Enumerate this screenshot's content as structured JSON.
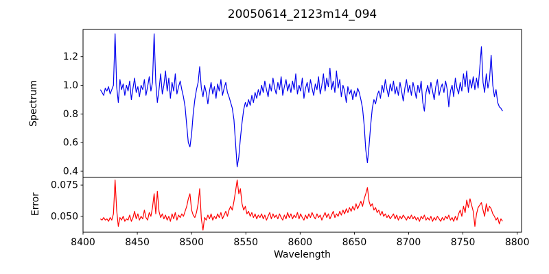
{
  "figure": {
    "background": "#ffffff"
  },
  "chart_data": [
    {
      "type": "line",
      "title": "20050614_2123m14_094",
      "series_name": "spectrum",
      "ylabel": "Spectrum",
      "color": "#0000ee",
      "xlim": [
        8400,
        8804
      ],
      "ylim": [
        0.357,
        1.39
      ],
      "yticks": [
        0.4,
        0.6,
        0.8,
        1.0,
        1.2
      ],
      "ytick_labels": [
        "0.4",
        "0.6",
        "0.8",
        "1.0",
        "1.2"
      ],
      "grid": false,
      "legend": null,
      "x_start": 8416,
      "x_step": 1.5,
      "values": [
        0.97,
        0.95,
        0.93,
        0.98,
        0.96,
        0.99,
        0.94,
        0.97,
        1.0,
        1.36,
        0.99,
        0.88,
        1.04,
        0.97,
        1.01,
        0.93,
        1.0,
        0.96,
        1.03,
        0.9,
        0.98,
        1.05,
        0.95,
        0.99,
        0.92,
        1.0,
        0.97,
        1.04,
        0.93,
        0.99,
        1.06,
        0.96,
        1.02,
        1.36,
        1.02,
        0.88,
        0.97,
        1.08,
        0.94,
        1.0,
        1.1,
        0.96,
        1.05,
        0.91,
        1.02,
        0.96,
        1.08,
        0.94,
        0.99,
        1.03,
        0.97,
        0.92,
        0.85,
        0.72,
        0.6,
        0.57,
        0.66,
        0.8,
        0.9,
        0.97,
        1.02,
        1.13,
        0.98,
        0.92,
        1.0,
        0.95,
        0.87,
        0.96,
        1.02,
        0.94,
        0.99,
        0.91,
        1.01,
        0.96,
        1.04,
        0.93,
        0.98,
        1.02,
        0.95,
        0.92,
        0.88,
        0.84,
        0.76,
        0.6,
        0.43,
        0.5,
        0.63,
        0.74,
        0.83,
        0.88,
        0.85,
        0.9,
        0.86,
        0.93,
        0.88,
        0.95,
        0.91,
        0.97,
        0.93,
        1.0,
        0.95,
        1.03,
        0.97,
        0.92,
        1.01,
        0.96,
        1.05,
        0.98,
        0.94,
        1.02,
        0.97,
        1.06,
        0.93,
        0.99,
        1.04,
        0.96,
        1.01,
        0.95,
        1.03,
        0.97,
        1.08,
        0.94,
        1.0,
        0.96,
        1.05,
        0.91,
        0.98,
        1.02,
        0.95,
        1.04,
        0.98,
        0.93,
        1.01,
        0.97,
        1.06,
        0.94,
        1.0,
        1.08,
        0.96,
        1.05,
        0.99,
        1.12,
        0.97,
        1.03,
        0.95,
        1.1,
        0.98,
        1.04,
        0.92,
        1.0,
        0.96,
        0.88,
        0.99,
        0.94,
        0.97,
        0.9,
        0.96,
        0.92,
        0.98,
        0.95,
        0.9,
        0.84,
        0.72,
        0.55,
        0.46,
        0.58,
        0.72,
        0.84,
        0.9,
        0.87,
        0.93,
        0.96,
        0.91,
        1.0,
        0.95,
        1.04,
        0.97,
        0.92,
        1.01,
        0.96,
        1.03,
        0.94,
        0.99,
        0.93,
        1.02,
        0.96,
        0.89,
        0.98,
        1.04,
        0.95,
        1.0,
        0.93,
        1.02,
        0.97,
        0.91,
        1.0,
        0.95,
        1.03,
        0.88,
        0.82,
        0.95,
        1.0,
        0.94,
        1.02,
        0.96,
        0.9,
        0.99,
        1.04,
        0.93,
        0.98,
        1.01,
        0.95,
        1.03,
        0.97,
        0.85,
        0.96,
        1.0,
        0.92,
        1.05,
        0.98,
        0.94,
        1.02,
        0.96,
        1.08,
        0.99,
        1.1,
        0.95,
        1.04,
        0.98,
        1.06,
        0.97,
        1.05,
        0.98,
        1.12,
        1.27,
        1.02,
        0.95,
        1.08,
        0.98,
        1.04,
        1.21,
        1.0,
        0.92,
        0.97,
        0.88,
        0.85,
        0.84,
        0.82
      ]
    },
    {
      "type": "line",
      "series_name": "error",
      "ylabel": "Error",
      "xlabel": "Wavelength",
      "color": "#ff0000",
      "xlim": [
        8400,
        8804
      ],
      "ylim": [
        0.0373,
        0.0811
      ],
      "yticks": [
        0.05,
        0.075
      ],
      "ytick_labels": [
        "0.050",
        "0.075"
      ],
      "xticks": [
        8400,
        8450,
        8500,
        8550,
        8600,
        8650,
        8700,
        8750,
        8800
      ],
      "xtick_labels": [
        "8400",
        "8450",
        "8500",
        "8550",
        "8600",
        "8650",
        "8700",
        "8750",
        "8800"
      ],
      "grid": false,
      "legend": null,
      "x_start": 8416,
      "x_step": 1.5,
      "values": [
        0.048,
        0.047,
        0.049,
        0.047,
        0.048,
        0.046,
        0.049,
        0.047,
        0.052,
        0.079,
        0.055,
        0.042,
        0.049,
        0.047,
        0.05,
        0.046,
        0.048,
        0.047,
        0.051,
        0.046,
        0.049,
        0.054,
        0.048,
        0.052,
        0.047,
        0.05,
        0.048,
        0.055,
        0.049,
        0.047,
        0.053,
        0.05,
        0.057,
        0.068,
        0.052,
        0.07,
        0.054,
        0.049,
        0.052,
        0.048,
        0.051,
        0.047,
        0.05,
        0.046,
        0.052,
        0.048,
        0.053,
        0.047,
        0.051,
        0.049,
        0.052,
        0.05,
        0.054,
        0.058,
        0.064,
        0.068,
        0.055,
        0.051,
        0.049,
        0.053,
        0.06,
        0.072,
        0.048,
        0.039,
        0.049,
        0.047,
        0.051,
        0.048,
        0.052,
        0.047,
        0.05,
        0.048,
        0.052,
        0.049,
        0.053,
        0.048,
        0.051,
        0.054,
        0.05,
        0.055,
        0.058,
        0.055,
        0.062,
        0.07,
        0.079,
        0.068,
        0.072,
        0.06,
        0.055,
        0.058,
        0.052,
        0.054,
        0.05,
        0.053,
        0.049,
        0.052,
        0.048,
        0.051,
        0.049,
        0.052,
        0.048,
        0.051,
        0.047,
        0.05,
        0.053,
        0.048,
        0.052,
        0.049,
        0.051,
        0.048,
        0.052,
        0.049,
        0.047,
        0.051,
        0.048,
        0.053,
        0.049,
        0.052,
        0.048,
        0.051,
        0.049,
        0.053,
        0.048,
        0.052,
        0.049,
        0.047,
        0.051,
        0.048,
        0.052,
        0.049,
        0.053,
        0.05,
        0.048,
        0.052,
        0.049,
        0.051,
        0.047,
        0.05,
        0.053,
        0.049,
        0.052,
        0.048,
        0.051,
        0.054,
        0.049,
        0.052,
        0.05,
        0.054,
        0.051,
        0.055,
        0.052,
        0.056,
        0.053,
        0.057,
        0.054,
        0.058,
        0.055,
        0.06,
        0.056,
        0.059,
        0.062,
        0.058,
        0.064,
        0.068,
        0.073,
        0.062,
        0.058,
        0.06,
        0.055,
        0.057,
        0.053,
        0.055,
        0.051,
        0.054,
        0.05,
        0.052,
        0.049,
        0.051,
        0.048,
        0.05,
        0.052,
        0.048,
        0.051,
        0.047,
        0.05,
        0.048,
        0.051,
        0.049,
        0.047,
        0.05,
        0.048,
        0.051,
        0.048,
        0.05,
        0.047,
        0.049,
        0.046,
        0.05,
        0.048,
        0.051,
        0.047,
        0.049,
        0.047,
        0.05,
        0.046,
        0.049,
        0.047,
        0.05,
        0.048,
        0.046,
        0.049,
        0.047,
        0.05,
        0.048,
        0.051,
        0.047,
        0.049,
        0.046,
        0.05,
        0.047,
        0.052,
        0.055,
        0.05,
        0.058,
        0.053,
        0.063,
        0.057,
        0.064,
        0.059,
        0.054,
        0.042,
        0.052,
        0.057,
        0.059,
        0.061,
        0.055,
        0.05,
        0.06,
        0.054,
        0.058,
        0.056,
        0.052,
        0.05,
        0.047,
        0.049,
        0.044,
        0.048,
        0.046
      ]
    }
  ]
}
